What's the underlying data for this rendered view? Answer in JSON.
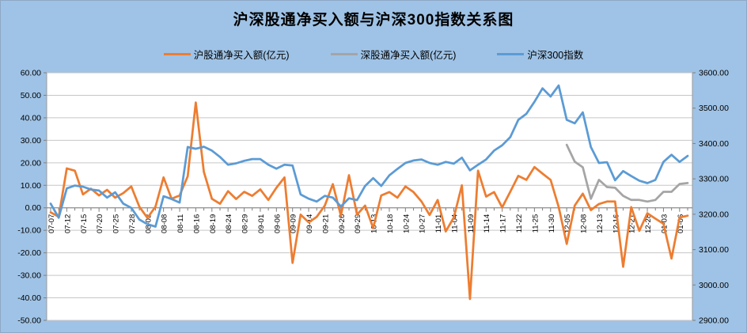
{
  "chart_data": {
    "type": "line",
    "title": "沪深股通净买入额与沪深300指数关系图",
    "legend_position": "top",
    "grid": true,
    "x_label_every": 2,
    "categories": [
      "07-07",
      "07-12",
      "07-15",
      "07-20",
      "07-25",
      "07-28",
      "08-03",
      "08-08",
      "08-11",
      "08-16",
      "08-19",
      "08-24",
      "08-29",
      "09-01",
      "09-06",
      "09-09",
      "09-14",
      "09-21",
      "09-26",
      "09-29",
      "10-13",
      "10-18",
      "10-24",
      "10-27",
      "11-01",
      "11-04",
      "11-09",
      "11-14",
      "11-17",
      "11-22",
      "11-25",
      "11-30",
      "12-05",
      "12-08",
      "12-13",
      "12-16",
      "12-21",
      "12-28",
      "01-03",
      "01-06"
    ],
    "left_axis": {
      "min": -50,
      "max": 60,
      "step": 10,
      "tick_labels": [
        "60.00",
        "50.00",
        "40.00",
        "30.00",
        "20.00",
        "10.00",
        "0.00",
        "-10.00",
        "-20.00",
        "-30.00",
        "-40.00",
        "-50.00"
      ]
    },
    "right_axis": {
      "min": 2900,
      "max": 3600,
      "step": 100,
      "tick_labels": [
        "3600.00",
        "3500.00",
        "3400.00",
        "3300.00",
        "3200.00",
        "3100.00",
        "3000.00",
        "2900.00"
      ]
    },
    "series": [
      {
        "name": "沪股通净买入额(亿元)",
        "color": "#ED7D31",
        "axis": "left",
        "start_index": 0,
        "values": [
          -2,
          -4,
          17.5,
          16.5,
          6,
          8.5,
          5.5,
          8,
          4.5,
          6.5,
          9.5,
          0.5,
          -4.5,
          0.5,
          13.5,
          4,
          5.5,
          14,
          46.8,
          16,
          4,
          1.8,
          7.4,
          3.9,
          7.1,
          5.3,
          8.2,
          3.5,
          8.9,
          13.5,
          -24.5,
          -3,
          -6.5,
          -4,
          1,
          10.5,
          -3.5,
          14.5,
          -3,
          1,
          -9,
          5.5,
          7,
          4.5,
          9.5,
          7,
          2.8,
          -3.2,
          3.5,
          -10.5,
          -4.3,
          10,
          -40.5,
          16.5,
          5,
          7,
          0.2,
          7.1,
          14.2,
          12.4,
          18.1,
          15.2,
          12.4,
          0.4,
          -16,
          1,
          6.3,
          -1,
          1.7,
          2.8,
          2.8,
          -26.2,
          0.3,
          -10.2,
          -2.4,
          -4.8,
          -7.1,
          -22.5,
          -4.3,
          -3.5
        ]
      },
      {
        "name": "深股通净买入额(亿元)",
        "color": "#A5A5A5",
        "axis": "left",
        "start_index": 64,
        "values": [
          28,
          20.5,
          18,
          4,
          12.4,
          9.2,
          8.9,
          5.3,
          3.5,
          3.5,
          2.8,
          3.5,
          7.1,
          7.1,
          10.6,
          11
        ]
      },
      {
        "name": "沪深300指数",
        "color": "#5B9BD5",
        "axis": "right",
        "start_index": 0,
        "values": [
          3230,
          3190,
          3273,
          3281,
          3278,
          3270,
          3267,
          3247,
          3262,
          3230,
          3218,
          3185,
          3172,
          3165,
          3251,
          3243,
          3233,
          3390,
          3385,
          3391,
          3380,
          3362,
          3340,
          3344,
          3351,
          3356,
          3356,
          3340,
          3329,
          3340,
          3338,
          3256,
          3244,
          3236,
          3252,
          3247,
          3222,
          3245,
          3240,
          3280,
          3302,
          3280,
          3310,
          3328,
          3345,
          3352,
          3355,
          3345,
          3340,
          3348,
          3343,
          3360,
          3324,
          3340,
          3355,
          3380,
          3395,
          3418,
          3467,
          3484,
          3518,
          3556,
          3533,
          3564,
          3467,
          3457,
          3488,
          3390,
          3345,
          3347,
          3296,
          3322,
          3308,
          3295,
          3288,
          3297,
          3348,
          3368,
          3348,
          3365
        ]
      }
    ]
  },
  "colors": {
    "chart_background": "#9FC3E6",
    "plot_background": "#FFFFFF",
    "gridline": "#C6C6C6",
    "axis_line": "#9B9B9B",
    "tick": "#7F7F7F",
    "label_text": "#000000"
  }
}
